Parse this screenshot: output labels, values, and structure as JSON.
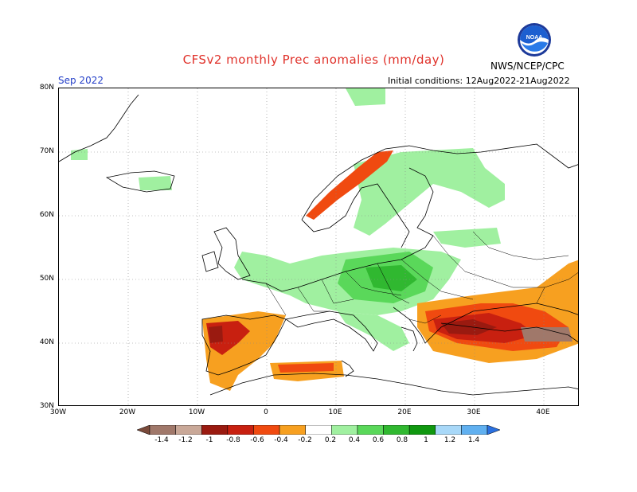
{
  "title": "CFSv2 monthly Prec anomalies (mm/day)",
  "month": "Sep 2022",
  "initial_conditions": "Initial conditions: 12Aug2022-21Aug2022",
  "agency": "NWS/NCEP/CPC",
  "logo_text": "NOAA",
  "y_axis_labels": [
    "80N",
    "70N",
    "60N",
    "50N",
    "40N",
    "30N"
  ],
  "x_axis_labels": [
    "30W",
    "20W",
    "10W",
    "0",
    "10E",
    "20E",
    "30E",
    "40E"
  ],
  "colorbar": {
    "labels": [
      "-1.4",
      "-1.2",
      "-1",
      "-0.8",
      "-0.6",
      "-0.4",
      "-0.2",
      "0.2",
      "0.4",
      "0.6",
      "0.8",
      "1",
      "1.2",
      "1.4"
    ],
    "colors": [
      "#7a4a3a",
      "#a0786a",
      "#c9a898",
      "#9a1a10",
      "#c82010",
      "#f04a10",
      "#f7a020",
      "#ffffff",
      "#a0f0a0",
      "#5ad85a",
      "#30b830",
      "#109810",
      "#a8d8f8",
      "#60b0f0",
      "#2a70e0"
    ]
  },
  "colors": {
    "title": "#e0312a",
    "month": "#2540c8",
    "neg_strong": "#c82010",
    "neg_mid": "#f04a10",
    "neg_weak": "#f7a020",
    "neg_extreme": "#9a1a10",
    "neg_brown": "#a0786a",
    "pos_weak": "#a0f0a0",
    "pos_mid": "#5ad85a",
    "pos_strong": "#30b830",
    "pos_extreme": "#109810"
  }
}
